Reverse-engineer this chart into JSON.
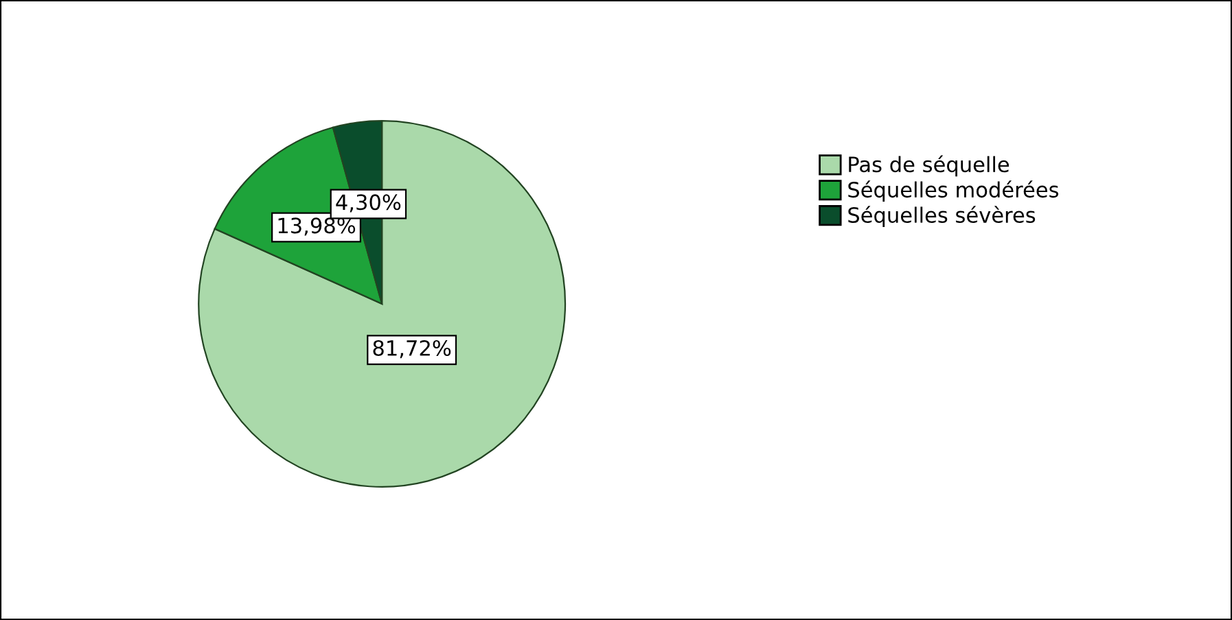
{
  "chart_data": {
    "type": "pie",
    "categories": [
      "Pas de séquelle",
      "Séquelles modérées",
      "Séquelles sévères"
    ],
    "values": [
      81.72,
      13.98,
      4.3
    ],
    "colors": [
      "#aad9aa",
      "#1ea33a",
      "#0a4d2c"
    ],
    "value_labels": [
      "81,72%",
      "13,98%",
      "4,30%"
    ],
    "legend": "right"
  }
}
